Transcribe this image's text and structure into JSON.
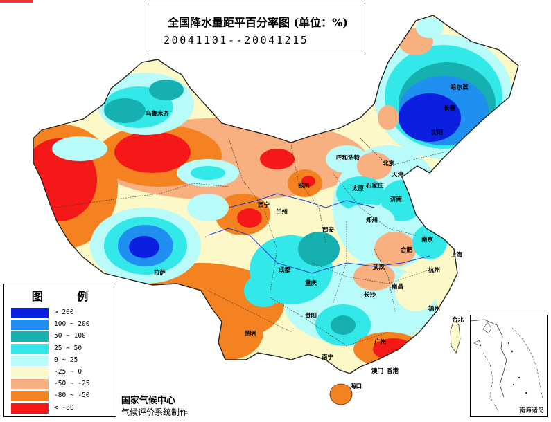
{
  "title": "全国降水量距平百分率图 (单位：%)",
  "period": "20041101--20041215",
  "legend": {
    "title": "图 例",
    "items": [
      {
        "label": "> 200",
        "color": "#0a1fe0"
      },
      {
        "label": "100 ~ 200",
        "color": "#1f8ff0"
      },
      {
        "label": "50 ~ 100",
        "color": "#16b0b0"
      },
      {
        "label": "25 ~ 50",
        "color": "#33e8e8"
      },
      {
        "label": "0 ~ 25",
        "color": "#b8fbf8"
      },
      {
        "label": "-25 ~ 0",
        "color": "#fcf8c8"
      },
      {
        "label": "-50 ~ -25",
        "color": "#f8b080"
      },
      {
        "label": "-80 ~ -50",
        "color": "#f58220"
      },
      {
        "label": "< -80",
        "color": "#f51818"
      }
    ]
  },
  "organization": [
    "国家气候中心",
    "气候评价系统制作"
  ],
  "inset_label": "南海诸岛",
  "cities": [
    {
      "name": "乌鲁木齐"
    },
    {
      "name": "哈尔滨"
    },
    {
      "name": "长春"
    },
    {
      "name": "沈阳"
    },
    {
      "name": "呼和浩特"
    },
    {
      "name": "北京"
    },
    {
      "name": "天津"
    },
    {
      "name": "石家庄"
    },
    {
      "name": "太原"
    },
    {
      "name": "济南"
    },
    {
      "name": "银川"
    },
    {
      "name": "西宁"
    },
    {
      "name": "兰州"
    },
    {
      "name": "郑州"
    },
    {
      "name": "西安"
    },
    {
      "name": "南京"
    },
    {
      "name": "合肥"
    },
    {
      "name": "上海"
    },
    {
      "name": "拉萨"
    },
    {
      "name": "成都"
    },
    {
      "name": "武汉"
    },
    {
      "name": "重庆"
    },
    {
      "name": "杭州"
    },
    {
      "name": "长沙"
    },
    {
      "name": "南昌"
    },
    {
      "name": "贵阳"
    },
    {
      "name": "福州"
    },
    {
      "name": "昆明"
    },
    {
      "name": "南宁"
    },
    {
      "name": "广州"
    },
    {
      "name": "台北"
    },
    {
      "name": "澳门"
    },
    {
      "name": "香港"
    },
    {
      "name": "海口"
    }
  ]
}
